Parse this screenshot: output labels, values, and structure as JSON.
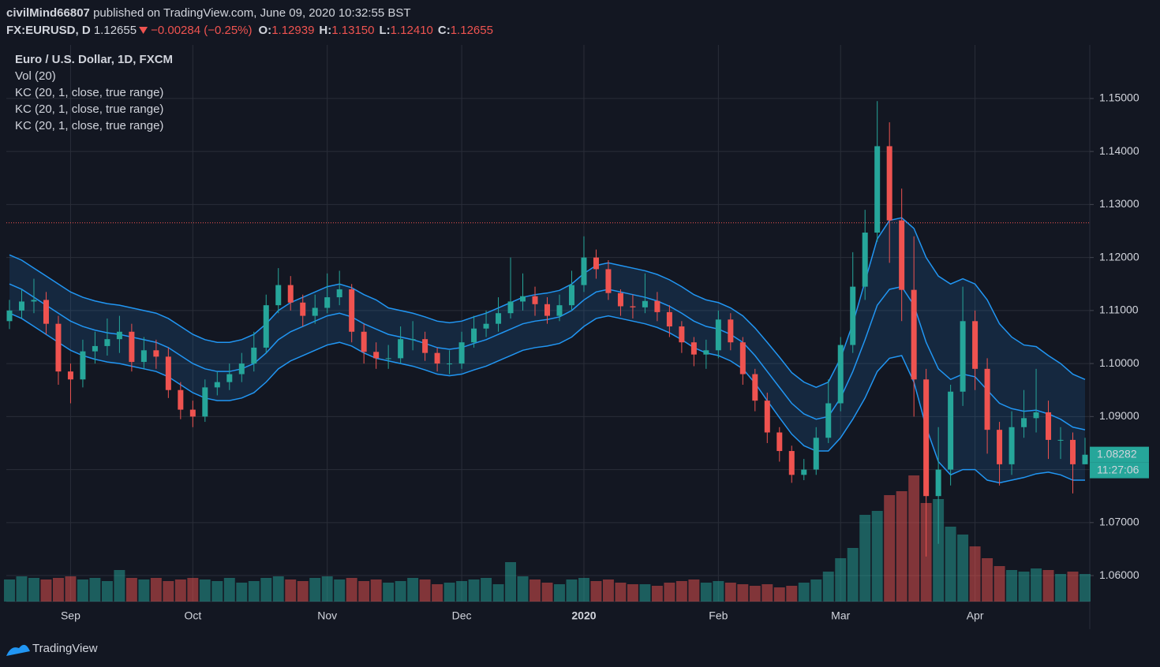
{
  "header": {
    "publisher": "civilMind66807",
    "published": "published on TradingView.com, June 09, 2020 10:32:55 BST",
    "symbol": "FX:EURUSD, D",
    "price": "1.12655",
    "change": "−0.00284 (−0.25%)",
    "ohlc": [
      {
        "label": "O:",
        "value": "1.12939"
      },
      {
        "label": "H:",
        "value": "1.13150"
      },
      {
        "label": "L:",
        "value": "1.12410"
      },
      {
        "label": "C:",
        "value": "1.12655"
      }
    ]
  },
  "footer": {
    "brand": "TradingView"
  },
  "chart_data": {
    "type": "candlestick",
    "legend": [
      "Euro / U.S. Dollar, 1D, FXCM",
      "Vol (20)",
      "KC (20, 1, close, true range)",
      "KC (20, 1, close, true range)",
      "KC (20, 1, close, true range)"
    ],
    "categories": [
      null,
      null,
      null,
      null,
      null,
      "Sep",
      null,
      null,
      null,
      null,
      null,
      null,
      null,
      null,
      null,
      "Oct",
      null,
      null,
      null,
      null,
      null,
      null,
      null,
      null,
      null,
      null,
      "Nov",
      null,
      null,
      null,
      null,
      null,
      null,
      null,
      null,
      null,
      null,
      "Dec",
      null,
      null,
      null,
      null,
      null,
      null,
      null,
      null,
      null,
      "2020",
      null,
      null,
      null,
      null,
      null,
      null,
      null,
      null,
      null,
      null,
      "Feb",
      null,
      null,
      null,
      null,
      null,
      null,
      null,
      null,
      null,
      "Mar",
      null,
      null,
      null,
      null,
      null,
      null,
      null,
      null,
      null,
      null,
      "Apr",
      null,
      null,
      null,
      null,
      null,
      null,
      null,
      null,
      null
    ],
    "ohlc": {
      "open": [
        1.108,
        1.11,
        1.1117,
        1.112,
        1.1075,
        1.0985,
        1.097,
        1.1023,
        1.1033,
        1.1046,
        1.106,
        1.1003,
        1.1025,
        1.1013,
        1.095,
        1.0913,
        1.09,
        1.0955,
        1.0965,
        1.098,
        1.1,
        1.103,
        1.111,
        1.1148,
        1.1115,
        1.109,
        1.1105,
        1.1125,
        1.114,
        1.106,
        1.1022,
        1.101,
        1.101,
        1.1046,
        1.1046,
        1.102,
        1.1,
        1.1,
        1.104,
        1.1066,
        1.1075,
        1.1095,
        1.1117,
        1.1127,
        1.1112,
        1.109,
        1.111,
        1.1148,
        1.12,
        1.1178,
        1.1133,
        1.1108,
        1.1106,
        1.1118,
        1.1097,
        1.107,
        1.104,
        1.1017,
        1.1025,
        1.1083,
        1.104,
        1.098,
        1.093,
        1.087,
        1.0835,
        1.079,
        1.08,
        1.086,
        1.0925,
        1.1035,
        1.1145,
        1.1247,
        1.141,
        1.127,
        1.1139,
        1.097,
        1.075,
        1.08,
        1.0947,
        1.108,
        1.099,
        1.0875,
        1.081,
        1.088,
        1.0897,
        1.0908,
        1.0856,
        1.0856,
        1.081
      ],
      "high": [
        1.112,
        1.114,
        1.116,
        1.1135,
        1.109,
        1.1,
        1.1045,
        1.106,
        1.1085,
        1.109,
        1.1075,
        1.105,
        1.1045,
        1.103,
        1.0965,
        1.093,
        1.097,
        1.0985,
        1.1,
        1.102,
        1.106,
        1.113,
        1.118,
        1.1165,
        1.113,
        1.113,
        1.117,
        1.1175,
        1.115,
        1.1075,
        1.104,
        1.1035,
        1.107,
        1.108,
        1.106,
        1.103,
        1.1025,
        1.106,
        1.109,
        1.11,
        1.1125,
        1.12,
        1.117,
        1.1145,
        1.1125,
        1.113,
        1.1175,
        1.124,
        1.1215,
        1.1195,
        1.114,
        1.113,
        1.117,
        1.1135,
        1.111,
        1.108,
        1.105,
        1.1045,
        1.11,
        1.1095,
        1.105,
        1.099,
        1.0945,
        1.088,
        1.0845,
        1.082,
        1.088,
        1.097,
        1.105,
        1.121,
        1.129,
        1.1495,
        1.1455,
        1.133,
        1.124,
        1.099,
        1.088,
        1.096,
        1.1145,
        1.11,
        1.101,
        1.089,
        1.091,
        1.095,
        1.099,
        1.093,
        1.088,
        1.087,
        1.086
      ],
      "low": [
        1.1065,
        1.1085,
        1.1095,
        1.1055,
        1.096,
        1.0925,
        1.0955,
        1.1,
        1.1015,
        1.102,
        1.0985,
        1.099,
        1.099,
        1.0935,
        1.0895,
        1.088,
        1.089,
        1.094,
        1.095,
        1.0965,
        1.0985,
        1.102,
        1.1095,
        1.11,
        1.107,
        1.1075,
        1.1095,
        1.111,
        1.104,
        1.1,
        1.099,
        1.099,
        1.1,
        1.1025,
        1.1005,
        1.0985,
        1.098,
        1.099,
        1.103,
        1.105,
        1.106,
        1.1085,
        1.11,
        1.109,
        1.1075,
        1.108,
        1.11,
        1.1135,
        1.116,
        1.112,
        1.109,
        1.1085,
        1.1095,
        1.108,
        1.105,
        1.102,
        1.0995,
        1.099,
        1.101,
        1.1025,
        1.096,
        1.091,
        1.085,
        1.0815,
        1.0775,
        1.078,
        1.079,
        1.085,
        1.091,
        1.102,
        1.112,
        1.123,
        1.119,
        1.108,
        1.09,
        1.0636,
        1.066,
        1.077,
        1.092,
        1.095,
        1.083,
        1.077,
        1.079,
        1.086,
        1.087,
        1.082,
        1.082,
        1.0755,
        1.081
      ],
      "close": [
        1.11,
        1.1117,
        1.112,
        1.1075,
        1.0985,
        1.097,
        1.1023,
        1.1033,
        1.1046,
        1.106,
        1.1003,
        1.1025,
        1.1013,
        1.095,
        1.0913,
        1.09,
        1.0955,
        1.0965,
        1.098,
        1.1,
        1.103,
        1.111,
        1.1148,
        1.1115,
        1.109,
        1.1105,
        1.1125,
        1.114,
        1.106,
        1.1022,
        1.101,
        1.101,
        1.1046,
        1.1046,
        1.102,
        1.1,
        1.1,
        1.104,
        1.1066,
        1.1075,
        1.1095,
        1.1117,
        1.1127,
        1.1112,
        1.109,
        1.111,
        1.1148,
        1.12,
        1.1178,
        1.1133,
        1.1108,
        1.1106,
        1.1118,
        1.1097,
        1.107,
        1.104,
        1.1017,
        1.1025,
        1.1083,
        1.104,
        1.098,
        1.093,
        1.087,
        1.0835,
        1.079,
        1.08,
        1.086,
        1.0925,
        1.1035,
        1.1145,
        1.1247,
        1.141,
        1.127,
        1.1139,
        1.097,
        1.075,
        1.08,
        1.0947,
        1.108,
        1.099,
        1.0875,
        1.081,
        1.088,
        1.0897,
        1.0908,
        1.0856,
        1.0856,
        1.081,
        1.0828
      ]
    },
    "volume": [
      28,
      32,
      30,
      28,
      30,
      32,
      28,
      30,
      26,
      40,
      30,
      28,
      30,
      26,
      28,
      30,
      28,
      26,
      30,
      24,
      26,
      30,
      32,
      28,
      26,
      30,
      32,
      28,
      30,
      26,
      28,
      24,
      26,
      30,
      28,
      22,
      24,
      26,
      28,
      30,
      22,
      50,
      32,
      28,
      24,
      22,
      28,
      30,
      26,
      28,
      24,
      22,
      22,
      20,
      24,
      26,
      28,
      24,
      26,
      24,
      22,
      20,
      22,
      18,
      20,
      24,
      28,
      38,
      55,
      68,
      110,
      115,
      135,
      140,
      160,
      125,
      130,
      95,
      85,
      70,
      55,
      45,
      40,
      38,
      42,
      40,
      35,
      38,
      35
    ],
    "kc_upper": [
      1.1205,
      1.1195,
      1.118,
      1.1165,
      1.115,
      1.1135,
      1.1125,
      1.1118,
      1.1113,
      1.111,
      1.1105,
      1.11,
      1.1095,
      1.1085,
      1.107,
      1.1055,
      1.1045,
      1.104,
      1.104,
      1.1045,
      1.1055,
      1.1075,
      1.11,
      1.1115,
      1.1125,
      1.1135,
      1.1145,
      1.115,
      1.1143,
      1.113,
      1.112,
      1.1105,
      1.11,
      1.1095,
      1.1088,
      1.108,
      1.1077,
      1.108,
      1.1088,
      1.1095,
      1.1105,
      1.1115,
      1.1125,
      1.113,
      1.1133,
      1.1138,
      1.115,
      1.117,
      1.1185,
      1.119,
      1.1185,
      1.118,
      1.1175,
      1.1168,
      1.1158,
      1.1145,
      1.113,
      1.112,
      1.1115,
      1.1105,
      1.109,
      1.1067,
      1.104,
      1.1012,
      1.0983,
      1.0965,
      1.0955,
      1.0965,
      1.101,
      1.1075,
      1.1155,
      1.1235,
      1.127,
      1.1275,
      1.1255,
      1.12,
      1.1165,
      1.115,
      1.116,
      1.115,
      1.112,
      1.1075,
      1.105,
      1.1035,
      1.1032,
      1.1015,
      1.1,
      1.098,
      1.097
    ],
    "kc_middle": [
      1.115,
      1.114,
      1.1125,
      1.111,
      1.1095,
      1.108,
      1.107,
      1.1063,
      1.1058,
      1.1055,
      1.105,
      1.1045,
      1.104,
      1.103,
      1.1015,
      1.1,
      1.099,
      1.0985,
      1.0985,
      1.099,
      1.1,
      1.102,
      1.1045,
      1.106,
      1.107,
      1.108,
      1.109,
      1.1095,
      1.1088,
      1.1075,
      1.1065,
      1.1055,
      1.105,
      1.1045,
      1.1038,
      1.103,
      1.1027,
      1.103,
      1.1038,
      1.1045,
      1.1055,
      1.1065,
      1.1075,
      1.108,
      1.1083,
      1.1088,
      1.11,
      1.112,
      1.1135,
      1.114,
      1.1135,
      1.113,
      1.1125,
      1.1118,
      1.1108,
      1.1095,
      1.108,
      1.107,
      1.1065,
      1.1055,
      1.104,
      1.1015,
      1.0985,
      1.0955,
      1.0925,
      1.0905,
      1.0895,
      1.09,
      1.0935,
      1.0985,
      1.1045,
      1.111,
      1.114,
      1.1145,
      1.111,
      1.104,
      1.099,
      1.097,
      1.098,
      1.0975,
      1.095,
      1.0925,
      1.0915,
      1.091,
      1.0912,
      1.0905,
      1.0895,
      1.088,
      1.0875
    ],
    "kc_lower": [
      1.1095,
      1.1085,
      1.107,
      1.1055,
      1.104,
      1.1025,
      1.1015,
      1.1008,
      1.1003,
      1.1,
      1.0995,
      1.099,
      1.0985,
      1.0975,
      1.096,
      1.0945,
      1.0935,
      1.093,
      1.093,
      1.0935,
      1.0945,
      1.0965,
      1.099,
      1.1005,
      1.1015,
      1.1025,
      1.1035,
      1.104,
      1.1033,
      1.102,
      1.101,
      1.1005,
      1.1,
      1.0995,
      1.0988,
      1.098,
      1.0977,
      1.098,
      1.0988,
      1.0995,
      1.1005,
      1.1015,
      1.1025,
      1.103,
      1.1033,
      1.1038,
      1.105,
      1.107,
      1.1085,
      1.109,
      1.1085,
      1.108,
      1.1075,
      1.1068,
      1.1058,
      1.1045,
      1.103,
      1.102,
      1.1015,
      1.1005,
      1.099,
      1.0963,
      1.093,
      1.0898,
      1.0867,
      1.0845,
      1.0835,
      1.0835,
      1.086,
      1.0895,
      1.0935,
      1.0985,
      1.101,
      1.1015,
      1.0965,
      1.088,
      1.0815,
      1.079,
      1.08,
      1.08,
      1.078,
      1.0775,
      1.078,
      1.0785,
      1.0792,
      1.0795,
      1.079,
      1.078,
      1.078
    ],
    "ylim": [
      1.0551,
      1.1601
    ],
    "yticks": [
      {
        "value": 1.06,
        "label": "1.06000"
      },
      {
        "value": 1.07,
        "label": "1.07000"
      },
      {
        "value": 1.08,
        "label": "1.08000"
      },
      {
        "value": 1.09,
        "label": "1.09000"
      },
      {
        "value": 1.1,
        "label": "1.10000"
      },
      {
        "value": 1.11,
        "label": "1.11000"
      },
      {
        "value": 1.12,
        "label": "1.12000"
      },
      {
        "value": 1.13,
        "label": "1.13000"
      },
      {
        "value": 1.14,
        "label": "1.14000"
      },
      {
        "value": 1.15,
        "label": "1.15000"
      }
    ],
    "price_line": 1.12655,
    "last_price": {
      "value": 1.08282,
      "label": "1.08282"
    },
    "countdown": "11:27:06",
    "grid": true,
    "up_color": "#26a69a",
    "down_color": "#ef5350",
    "kc_color": "#2196f3"
  }
}
